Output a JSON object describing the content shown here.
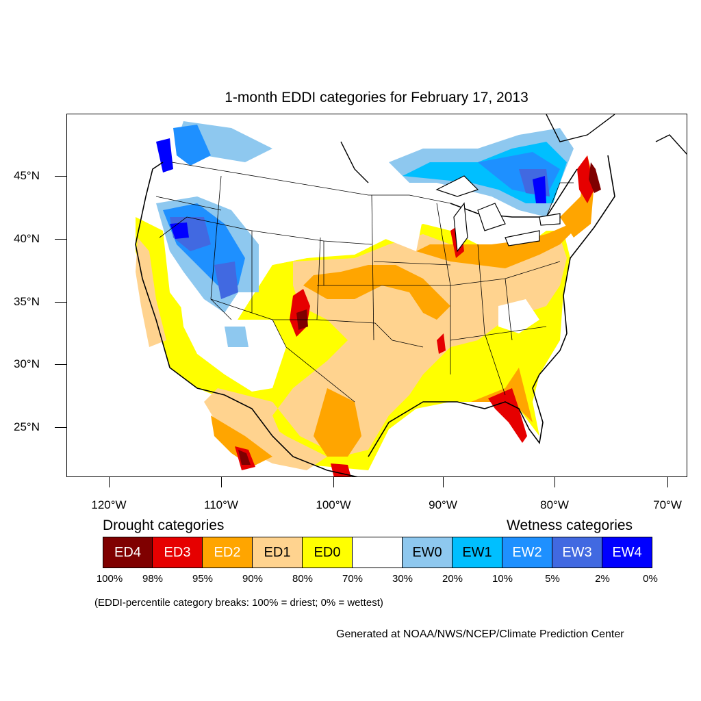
{
  "map": {
    "title": "1-month EDDI categories for February 17, 2013",
    "lat_labels": [
      "45°N",
      "40°N",
      "35°N",
      "30°N",
      "25°N"
    ],
    "lon_labels": [
      "120°W",
      "110°W",
      "100°W",
      "90°W",
      "80°W",
      "70°W"
    ]
  },
  "legend": {
    "drought_heading": "Drought categories",
    "wetness_heading": "Wetness categories",
    "categories": [
      {
        "label": "ED4",
        "color": "#7f0000",
        "text_color": "#ffffff"
      },
      {
        "label": "ED3",
        "color": "#e60000",
        "text_color": "#ffffff"
      },
      {
        "label": "ED2",
        "color": "#ffa500",
        "text_color": "#ffffff"
      },
      {
        "label": "ED1",
        "color": "#ffd38f",
        "text_color": "#000000"
      },
      {
        "label": "ED0",
        "color": "#ffff00",
        "text_color": "#000000"
      },
      {
        "label": "",
        "color": "#ffffff",
        "text_color": "#000000"
      },
      {
        "label": "EW0",
        "color": "#8ec8ef",
        "text_color": "#000000"
      },
      {
        "label": "EW1",
        "color": "#00bfff",
        "text_color": "#000000"
      },
      {
        "label": "EW2",
        "color": "#1e90ff",
        "text_color": "#ffffff"
      },
      {
        "label": "EW3",
        "color": "#4169e1",
        "text_color": "#ffffff"
      },
      {
        "label": "EW4",
        "color": "#0000ff",
        "text_color": "#ffffff"
      }
    ],
    "breaks": [
      "100%",
      "98%",
      "95%",
      "90%",
      "80%",
      "70%",
      "30%",
      "20%",
      "10%",
      "5%",
      "2%",
      "0%"
    ],
    "note": "(EDDI-percentile category breaks: 100% = driest; 0% = wettest)"
  },
  "credit": "Generated at NOAA/NWS/NCEP/Climate Prediction Center"
}
